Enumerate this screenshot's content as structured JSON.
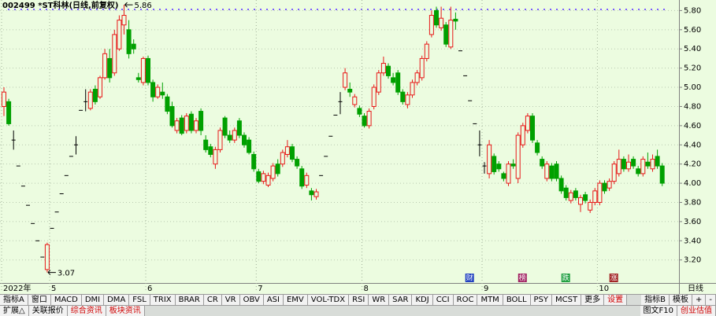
{
  "chart_data": {
    "type": "candlestick",
    "title": "002499 *ST科林(日线,前复权)",
    "period_label": "日线",
    "up_color": "#e81818",
    "down_color": "#00a000",
    "flat_color": "#000000",
    "ylim": [
      2.96,
      5.91
    ],
    "yticks": [
      {
        "value": 3.2,
        "label": "3.20"
      },
      {
        "value": 3.4,
        "label": "3.40"
      },
      {
        "value": 3.6,
        "label": "3.60"
      },
      {
        "value": 3.8,
        "label": "3.80"
      },
      {
        "value": 4.0,
        "label": "4.00"
      },
      {
        "value": 4.2,
        "label": "4.20"
      },
      {
        "value": 4.4,
        "label": "4.40"
      },
      {
        "value": 4.6,
        "label": "4.60"
      },
      {
        "value": 4.8,
        "label": "4.80"
      },
      {
        "value": 5.0,
        "label": "5.00"
      },
      {
        "value": 5.2,
        "label": "5.20"
      },
      {
        "value": 5.4,
        "label": "5.40"
      },
      {
        "value": 5.6,
        "label": "5.60"
      },
      {
        "value": 5.8,
        "label": "5.80"
      }
    ],
    "grid": true,
    "annotations": [
      5.86,
      3.07
    ],
    "events": [
      "财",
      "榜",
      "跌",
      "涨"
    ],
    "categories": [
      "2022年",
      null,
      null,
      null,
      null,
      null,
      null,
      null,
      null,
      null,
      "5",
      null,
      null,
      null,
      null,
      null,
      null,
      null,
      null,
      null,
      null,
      null,
      null,
      null,
      null,
      null,
      null,
      null,
      null,
      null,
      "6",
      null,
      null,
      null,
      null,
      null,
      null,
      null,
      null,
      null,
      null,
      null,
      null,
      null,
      null,
      null,
      null,
      null,
      null,
      null,
      null,
      null,
      null,
      "7",
      null,
      null,
      null,
      null,
      null,
      null,
      null,
      null,
      null,
      null,
      null,
      null,
      null,
      null,
      null,
      null,
      null,
      null,
      null,
      null,
      null,
      "8",
      null,
      null,
      null,
      null,
      null,
      null,
      null,
      null,
      null,
      null,
      null,
      null,
      null,
      null,
      null,
      null,
      null,
      null,
      null,
      null,
      null,
      null,
      null,
      null,
      "9",
      null,
      null,
      null,
      null,
      null,
      null,
      null,
      null,
      null,
      null,
      null,
      null,
      null,
      null,
      null,
      null,
      null,
      null,
      null,
      null,
      null,
      null,
      null,
      "10",
      null,
      null,
      null,
      null,
      null,
      null,
      null,
      null,
      null,
      null,
      null,
      null,
      null
    ],
    "candles": [
      [
        4.8,
        5.0,
        4.7,
        4.95
      ],
      [
        4.85,
        4.88,
        4.6,
        4.62
      ],
      [
        4.45,
        4.55,
        4.35,
        4.45
      ],
      [
        4.18,
        4.18,
        4.18,
        4.18
      ],
      [
        3.97,
        3.97,
        3.97,
        3.97
      ],
      [
        3.77,
        3.77,
        3.77,
        3.77
      ],
      [
        3.58,
        3.58,
        3.58,
        3.58
      ],
      [
        3.4,
        3.4,
        3.4,
        3.4
      ],
      [
        3.23,
        3.23,
        3.23,
        3.23
      ],
      [
        3.1,
        3.38,
        3.07,
        3.36
      ],
      [
        3.53,
        3.53,
        3.53,
        3.53
      ],
      [
        3.7,
        3.7,
        3.7,
        3.7
      ],
      [
        3.89,
        3.89,
        3.89,
        3.89
      ],
      [
        4.08,
        4.08,
        4.08,
        4.08
      ],
      [
        4.28,
        4.28,
        4.28,
        4.28
      ],
      [
        4.4,
        4.49,
        4.3,
        4.4
      ],
      [
        4.76,
        4.76,
        4.76,
        4.76
      ],
      [
        4.85,
        4.98,
        4.75,
        4.85
      ],
      [
        4.78,
        4.98,
        4.76,
        4.95
      ],
      [
        4.98,
        5.02,
        4.82,
        4.85
      ],
      [
        4.9,
        5.12,
        4.88,
        5.1
      ],
      [
        5.1,
        5.4,
        5.08,
        5.35
      ],
      [
        5.3,
        5.4,
        5.05,
        5.1
      ],
      [
        5.15,
        5.6,
        5.12,
        5.55
      ],
      [
        5.4,
        5.75,
        5.38,
        5.7
      ],
      [
        5.65,
        5.86,
        5.55,
        5.75
      ],
      [
        5.6,
        5.7,
        5.3,
        5.35
      ],
      [
        5.45,
        5.5,
        5.35,
        5.4
      ],
      [
        5.1,
        5.15,
        5.05,
        5.08
      ],
      [
        5.05,
        5.32,
        5.02,
        5.3
      ],
      [
        5.3,
        5.33,
        5.02,
        5.05
      ],
      [
        5.05,
        5.08,
        4.85,
        4.9
      ],
      [
        4.9,
        5.03,
        4.88,
        5.0
      ],
      [
        4.95,
        5.05,
        4.88,
        4.92
      ],
      [
        4.9,
        4.93,
        4.72,
        4.75
      ],
      [
        4.8,
        4.85,
        4.58,
        4.6
      ],
      [
        4.55,
        4.68,
        4.52,
        4.65
      ],
      [
        4.68,
        4.71,
        4.5,
        4.52
      ],
      [
        4.55,
        4.73,
        4.52,
        4.7
      ],
      [
        4.72,
        4.75,
        4.52,
        4.55
      ],
      [
        4.55,
        4.68,
        4.52,
        4.65
      ],
      [
        4.75,
        4.78,
        4.5,
        4.55
      ],
      [
        4.45,
        4.5,
        4.32,
        4.35
      ],
      [
        4.38,
        4.41,
        4.27,
        4.3
      ],
      [
        4.2,
        4.38,
        4.15,
        4.35
      ],
      [
        4.35,
        4.58,
        4.32,
        4.55
      ],
      [
        4.68,
        4.7,
        4.47,
        4.5
      ],
      [
        4.5,
        4.55,
        4.42,
        4.45
      ],
      [
        4.45,
        4.58,
        4.42,
        4.55
      ],
      [
        4.65,
        4.68,
        4.47,
        4.5
      ],
      [
        4.5,
        4.53,
        4.37,
        4.4
      ],
      [
        4.45,
        4.48,
        4.3,
        4.32
      ],
      [
        4.3,
        4.33,
        4.12,
        4.15
      ],
      [
        4.12,
        4.15,
        4.0,
        4.02
      ],
      [
        4.02,
        4.13,
        3.99,
        4.1
      ],
      [
        3.98,
        4.11,
        3.96,
        4.08
      ],
      [
        4.05,
        4.21,
        4.02,
        4.18
      ],
      [
        4.2,
        4.25,
        4.07,
        4.1
      ],
      [
        4.2,
        4.35,
        4.17,
        4.32
      ],
      [
        4.3,
        4.45,
        4.27,
        4.38
      ],
      [
        4.38,
        4.41,
        4.22,
        4.25
      ],
      [
        4.25,
        4.28,
        4.15,
        4.18
      ],
      [
        4.15,
        4.18,
        3.94,
        3.97
      ],
      [
        3.98,
        4.11,
        3.95,
        4.08
      ],
      [
        3.92,
        3.95,
        3.82,
        3.88
      ],
      [
        3.86,
        3.94,
        3.83,
        3.91
      ],
      [
        4.08,
        4.08,
        4.08,
        4.08
      ],
      [
        4.28,
        4.28,
        4.28,
        4.28
      ],
      [
        4.49,
        4.49,
        4.49,
        4.49
      ],
      [
        4.71,
        4.71,
        4.71,
        4.71
      ],
      [
        4.85,
        4.95,
        4.72,
        4.85
      ],
      [
        5.0,
        5.2,
        4.97,
        5.15
      ],
      [
        4.98,
        5.05,
        4.9,
        4.95
      ],
      [
        4.82,
        4.93,
        4.79,
        4.9
      ],
      [
        4.78,
        4.81,
        4.69,
        4.72
      ],
      [
        4.7,
        4.73,
        4.58,
        4.6
      ],
      [
        4.6,
        4.78,
        4.57,
        4.75
      ],
      [
        4.8,
        5.03,
        4.77,
        5.0
      ],
      [
        4.95,
        5.18,
        4.92,
        5.15
      ],
      [
        5.15,
        5.32,
        5.12,
        5.25
      ],
      [
        5.22,
        5.25,
        5.09,
        5.12
      ],
      [
        5.1,
        5.15,
        5.02,
        5.05
      ],
      [
        5.15,
        5.18,
        4.92,
        4.95
      ],
      [
        4.95,
        4.98,
        4.82,
        4.85
      ],
      [
        4.82,
        4.95,
        4.78,
        4.92
      ],
      [
        4.92,
        5.08,
        4.89,
        5.05
      ],
      [
        5.05,
        5.18,
        5.02,
        5.15
      ],
      [
        5.1,
        5.33,
        5.07,
        5.3
      ],
      [
        5.3,
        5.48,
        5.27,
        5.45
      ],
      [
        5.55,
        5.8,
        5.52,
        5.75
      ],
      [
        5.8,
        5.84,
        5.62,
        5.65
      ],
      [
        5.62,
        5.84,
        5.59,
        5.72
      ],
      [
        5.65,
        5.68,
        5.42,
        5.45
      ],
      [
        5.42,
        5.84,
        5.4,
        5.7
      ],
      [
        5.71,
        5.78,
        5.6,
        5.69
      ],
      [
        5.38,
        5.38,
        5.38,
        5.38
      ],
      [
        5.12,
        5.12,
        5.12,
        5.12
      ],
      [
        4.86,
        4.86,
        4.86,
        4.86
      ],
      [
        4.62,
        4.62,
        4.62,
        4.62
      ],
      [
        4.4,
        4.55,
        4.28,
        4.4
      ],
      [
        4.18,
        4.22,
        4.1,
        4.18
      ],
      [
        4.1,
        4.45,
        4.05,
        4.4
      ],
      [
        4.28,
        4.31,
        4.09,
        4.12
      ],
      [
        4.2,
        4.23,
        4.12,
        4.15
      ],
      [
        4.1,
        4.12,
        4.02,
        4.05
      ],
      [
        4.0,
        4.23,
        3.97,
        4.2
      ],
      [
        4.2,
        4.25,
        4.15,
        4.18
      ],
      [
        4.05,
        4.53,
        4.0,
        4.5
      ],
      [
        4.4,
        4.63,
        4.37,
        4.6
      ],
      [
        4.55,
        4.73,
        4.52,
        4.7
      ],
      [
        4.7,
        4.73,
        4.42,
        4.45
      ],
      [
        4.42,
        4.45,
        4.29,
        4.32
      ],
      [
        4.25,
        4.28,
        4.15,
        4.18
      ],
      [
        4.05,
        4.23,
        4.02,
        4.2
      ],
      [
        4.18,
        4.21,
        4.02,
        4.05
      ],
      [
        4.2,
        4.23,
        4.02,
        4.05
      ],
      [
        4.05,
        4.08,
        3.89,
        3.92
      ],
      [
        3.95,
        3.98,
        3.82,
        3.85
      ],
      [
        3.82,
        3.93,
        3.79,
        3.9
      ],
      [
        3.92,
        3.95,
        3.82,
        3.85
      ],
      [
        3.78,
        3.88,
        3.7,
        3.85
      ],
      [
        3.88,
        3.91,
        3.79,
        3.82
      ],
      [
        3.72,
        3.83,
        3.69,
        3.8
      ],
      [
        3.8,
        3.95,
        3.77,
        3.92
      ],
      [
        3.8,
        4.03,
        3.77,
        4.0
      ],
      [
        4.0,
        4.03,
        3.89,
        3.92
      ],
      [
        3.95,
        4.05,
        3.92,
        4.02
      ],
      [
        4.02,
        4.23,
        3.99,
        4.2
      ],
      [
        4.1,
        4.35,
        4.07,
        4.25
      ],
      [
        4.25,
        4.28,
        4.12,
        4.15
      ],
      [
        4.15,
        4.3,
        4.12,
        4.22
      ],
      [
        4.25,
        4.28,
        4.15,
        4.18
      ],
      [
        4.15,
        4.18,
        4.07,
        4.1
      ],
      [
        4.1,
        4.28,
        4.07,
        4.25
      ],
      [
        4.22,
        4.32,
        4.15,
        4.18
      ],
      [
        4.15,
        4.3,
        4.12,
        4.25
      ],
      [
        4.28,
        4.35,
        4.15,
        4.18
      ],
      [
        4.18,
        4.21,
        3.97,
        4.0
      ]
    ]
  },
  "toolbar": {
    "buttons": [
      "指标A",
      "窗口",
      "MACD",
      "DMI",
      "DMA",
      "FSL",
      "TRIX",
      "BRAR",
      "CR",
      "VR",
      "OBV",
      "ASI",
      "EMV",
      "VOL-TDX",
      "RSI",
      "WR",
      "SAR",
      "KDJ",
      "CCI",
      "ROC",
      "MTM",
      "BOLL",
      "PSY",
      "MCST",
      "更多"
    ],
    "settings": "设置",
    "right": [
      "指标B",
      "模板",
      "+",
      "-"
    ]
  },
  "bottom_bar": {
    "left": [
      "扩展△",
      "关联报价"
    ],
    "left_red": [
      "综合资讯",
      "板块资讯"
    ],
    "right": "图文F10",
    "right_red": "创业估值"
  }
}
